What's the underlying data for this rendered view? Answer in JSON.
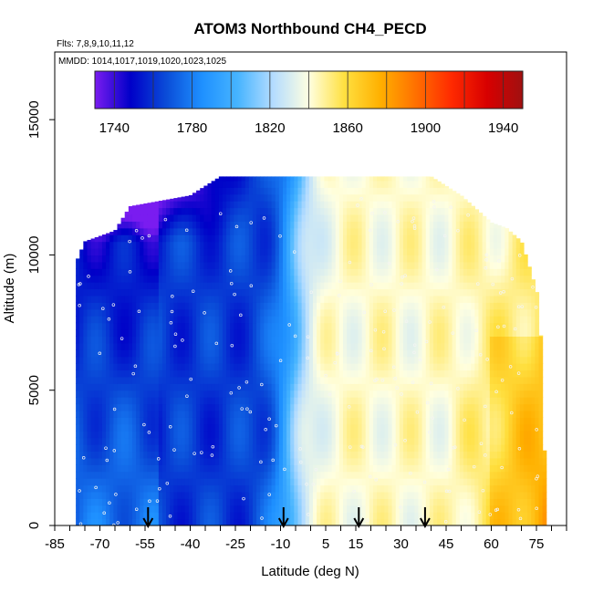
{
  "chart_data": {
    "type": "heatmap",
    "title": "ATOM3 Northbound CH4_PECD",
    "subtitle_flights": "Flts: 7,8,9,10,11,12",
    "subtitle_dates": "MMDD: 1014,1017,1019,1020,1023,1025",
    "xlabel": "Latitude (deg N)",
    "ylabel": "Altitude (m)",
    "xlim": [
      -85,
      85
    ],
    "ylim": [
      0,
      17500
    ],
    "x_tick_labels": [
      "-85",
      "-70",
      "-55",
      "-40",
      "-25",
      "-10",
      "5",
      "15",
      "30",
      "45",
      "60",
      "75"
    ],
    "x_tick_values": [
      -85,
      -70,
      -55,
      -40,
      -25,
      -10,
      5,
      15,
      30,
      45,
      60,
      75
    ],
    "y_tick_labels": [
      "0",
      "5000",
      "10000",
      "15000"
    ],
    "y_tick_values": [
      0,
      5000,
      10000,
      15000
    ],
    "colorbar": {
      "range": [
        1730,
        1950
      ],
      "tick_labels": [
        "1740",
        "1780",
        "1820",
        "1860",
        "1900",
        "1940"
      ],
      "tick_values": [
        1740,
        1780,
        1820,
        1860,
        1900,
        1940
      ]
    },
    "colorscale": [
      "#7a1cf0",
      "#0000c8",
      "#0a4cd8",
      "#1e90ff",
      "#46b4ff",
      "#b4dcff",
      "#ffffe0",
      "#ffe040",
      "#ffb000",
      "#ff7000",
      "#ff2a00",
      "#d80000",
      "#a01010"
    ],
    "arrows_latitude": [
      -54,
      -9,
      16,
      38
    ],
    "envelope": {
      "latitude": [
        -78,
        -75,
        -70,
        -65,
        -60,
        -50,
        -40,
        -30,
        -25,
        -10,
        0,
        10,
        20,
        30,
        40,
        50,
        60,
        65,
        70,
        72,
        76,
        78
      ],
      "top_alt_m": [
        9700,
        10500,
        10700,
        10900,
        11800,
        12000,
        12200,
        12900,
        12900,
        12900,
        12900,
        12900,
        12900,
        12900,
        12900,
        12200,
        11200,
        11000,
        10500,
        9800,
        8300,
        1500
      ]
    },
    "lower_edge_m": 0
  }
}
